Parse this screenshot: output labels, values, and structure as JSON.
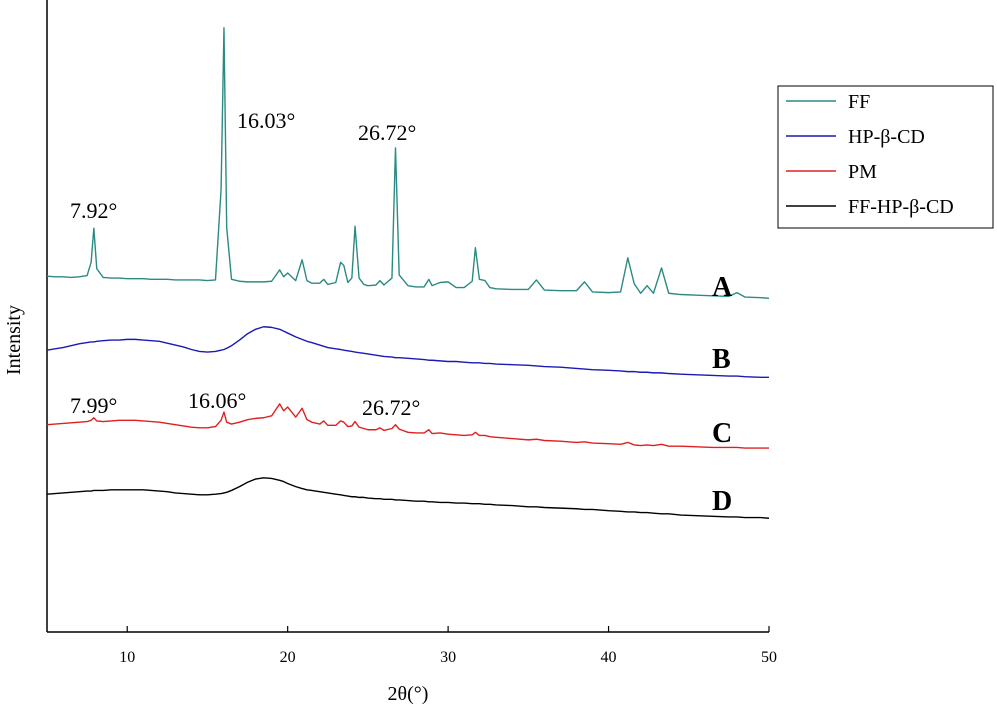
{
  "chart_data": {
    "type": "line",
    "xlabel": "2θ(°)",
    "ylabel": "Intensity",
    "xlim": [
      5,
      50
    ],
    "xticks": [
      10,
      20,
      30,
      40,
      50
    ],
    "ylim": [
      0,
      100
    ],
    "legend": "upper right",
    "annotations": [
      "7.92°",
      "16.03°",
      "26.72°",
      "7.99°",
      "16.06°",
      "26.72°"
    ],
    "curve_labels": [
      "A",
      "B",
      "C",
      "D"
    ],
    "x": [
      5,
      5.5,
      6,
      6.5,
      7,
      7.5,
      7.75,
      7.92,
      8.1,
      8.5,
      9,
      9.5,
      10,
      10.5,
      11,
      11.5,
      12,
      12.5,
      13,
      13.5,
      14,
      14.5,
      15,
      15.5,
      15.85,
      16.03,
      16.2,
      16.5,
      17,
      17.5,
      18,
      18.5,
      19,
      19.5,
      19.75,
      20,
      20.5,
      20.9,
      21.2,
      21.5,
      22,
      22.25,
      22.5,
      23,
      23.3,
      23.5,
      23.75,
      24,
      24.2,
      24.45,
      24.75,
      25,
      25.5,
      25.75,
      26,
      26.5,
      26.72,
      26.95,
      27.5,
      28,
      28.5,
      28.8,
      29,
      29.5,
      30,
      30.5,
      31,
      31.5,
      31.7,
      31.95,
      32.3,
      32.6,
      33,
      34,
      35,
      35.5,
      36,
      37,
      38,
      38.5,
      39,
      40,
      40.75,
      41.2,
      41.6,
      42,
      42.4,
      42.8,
      43.3,
      43.75,
      44.5,
      45.5,
      46.5,
      47.5,
      48,
      48.5,
      49.5,
      50
    ],
    "series": [
      {
        "name": "FF",
        "color": "#2b8a84",
        "values": [
          56.3,
          56.2,
          56.2,
          56.1,
          56.2,
          56.4,
          58.5,
          63.9,
          57.5,
          56.1,
          56.0,
          56.0,
          55.9,
          55.9,
          55.9,
          55.8,
          55.8,
          55.8,
          55.7,
          55.7,
          55.7,
          55.7,
          55.6,
          55.7,
          70.0,
          95.6,
          64.0,
          55.8,
          55.5,
          55.4,
          55.4,
          55.4,
          55.5,
          57.3,
          56.2,
          56.8,
          55.6,
          58.9,
          55.6,
          55.2,
          55.2,
          55.8,
          55.0,
          55.3,
          58.5,
          58.0,
          55.3,
          56.0,
          64.2,
          56.0,
          55.0,
          54.8,
          54.9,
          55.6,
          54.9,
          56.0,
          76.6,
          56.5,
          54.8,
          54.6,
          54.6,
          55.8,
          54.8,
          55.3,
          55.4,
          54.5,
          54.5,
          55.5,
          60.8,
          55.8,
          55.6,
          54.5,
          54.3,
          54.2,
          54.2,
          55.7,
          54.1,
          54.0,
          54.0,
          55.4,
          53.8,
          53.7,
          53.8,
          59.2,
          55.1,
          53.6,
          54.8,
          53.6,
          57.6,
          53.6,
          53.4,
          53.3,
          53.2,
          53.1,
          53.7,
          53.0,
          52.9,
          52.8
        ]
      },
      {
        "name": "HP-β-CD",
        "color": "#1a1ab4",
        "values": [
          44.6,
          44.8,
          45.0,
          45.3,
          45.6,
          45.8,
          45.9,
          45.9,
          46.0,
          46.1,
          46.2,
          46.2,
          46.3,
          46.3,
          46.2,
          46.1,
          46.0,
          45.7,
          45.4,
          45.1,
          44.7,
          44.4,
          44.3,
          44.4,
          44.6,
          44.7,
          44.9,
          45.3,
          46.2,
          47.2,
          47.9,
          48.3,
          48.2,
          47.9,
          47.6,
          47.3,
          46.7,
          46.3,
          46.0,
          45.8,
          45.4,
          45.2,
          45.0,
          44.8,
          44.7,
          44.6,
          44.5,
          44.4,
          44.3,
          44.2,
          44.1,
          44.0,
          43.8,
          43.7,
          43.6,
          43.5,
          43.4,
          43.4,
          43.3,
          43.2,
          43.1,
          43.0,
          43.0,
          42.9,
          42.8,
          42.8,
          42.7,
          42.6,
          42.6,
          42.6,
          42.5,
          42.5,
          42.4,
          42.3,
          42.2,
          42.1,
          42.0,
          41.9,
          41.7,
          41.6,
          41.5,
          41.4,
          41.3,
          41.2,
          41.2,
          41.1,
          41.1,
          41.0,
          41.0,
          40.9,
          40.8,
          40.7,
          40.6,
          40.5,
          40.5,
          40.4,
          40.3,
          40.3
        ]
      },
      {
        "name": "PM",
        "color": "#e02020",
        "values": [
          32.8,
          32.9,
          33.0,
          33.1,
          33.2,
          33.3,
          33.5,
          33.9,
          33.4,
          33.3,
          33.4,
          33.5,
          33.5,
          33.5,
          33.4,
          33.3,
          33.2,
          33.0,
          32.8,
          32.6,
          32.4,
          32.3,
          32.3,
          32.5,
          33.5,
          34.8,
          33.2,
          32.9,
          33.2,
          33.6,
          33.8,
          33.9,
          34.2,
          36.1,
          35.0,
          35.6,
          34.0,
          35.4,
          33.6,
          33.2,
          32.9,
          33.4,
          32.7,
          32.7,
          33.4,
          33.2,
          32.5,
          32.6,
          33.3,
          32.4,
          32.2,
          32.0,
          32.0,
          32.3,
          31.9,
          32.2,
          32.8,
          32.1,
          31.6,
          31.5,
          31.5,
          32.0,
          31.4,
          31.5,
          31.3,
          31.2,
          31.1,
          31.2,
          31.6,
          31.1,
          31.1,
          30.9,
          30.8,
          30.6,
          30.4,
          30.5,
          30.3,
          30.2,
          30.0,
          30.1,
          29.9,
          29.8,
          29.7,
          30.0,
          29.6,
          29.5,
          29.6,
          29.5,
          29.7,
          29.4,
          29.4,
          29.3,
          29.2,
          29.2,
          29.2,
          29.1,
          29.1,
          29.1
        ]
      },
      {
        "name": "FF-HP-β-CD",
        "color": "#000000",
        "values": [
          21.8,
          21.9,
          22.0,
          22.1,
          22.2,
          22.3,
          22.3,
          22.4,
          22.4,
          22.4,
          22.5,
          22.5,
          22.5,
          22.5,
          22.5,
          22.4,
          22.3,
          22.2,
          22.0,
          21.9,
          21.8,
          21.7,
          21.7,
          21.8,
          21.9,
          22.0,
          22.1,
          22.4,
          23.0,
          23.7,
          24.2,
          24.4,
          24.3,
          24.0,
          23.8,
          23.5,
          23.0,
          22.7,
          22.5,
          22.4,
          22.2,
          22.1,
          22.0,
          21.8,
          21.7,
          21.6,
          21.5,
          21.4,
          21.4,
          21.3,
          21.3,
          21.2,
          21.1,
          21.1,
          21.0,
          21.0,
          20.9,
          20.9,
          20.8,
          20.7,
          20.7,
          20.6,
          20.6,
          20.5,
          20.5,
          20.4,
          20.4,
          20.3,
          20.3,
          20.3,
          20.2,
          20.2,
          20.1,
          20.0,
          19.8,
          19.8,
          19.7,
          19.6,
          19.5,
          19.4,
          19.4,
          19.2,
          19.1,
          19.0,
          19.0,
          18.9,
          18.9,
          18.8,
          18.7,
          18.7,
          18.5,
          18.4,
          18.3,
          18.2,
          18.2,
          18.1,
          18.1,
          18.0
        ]
      }
    ]
  }
}
